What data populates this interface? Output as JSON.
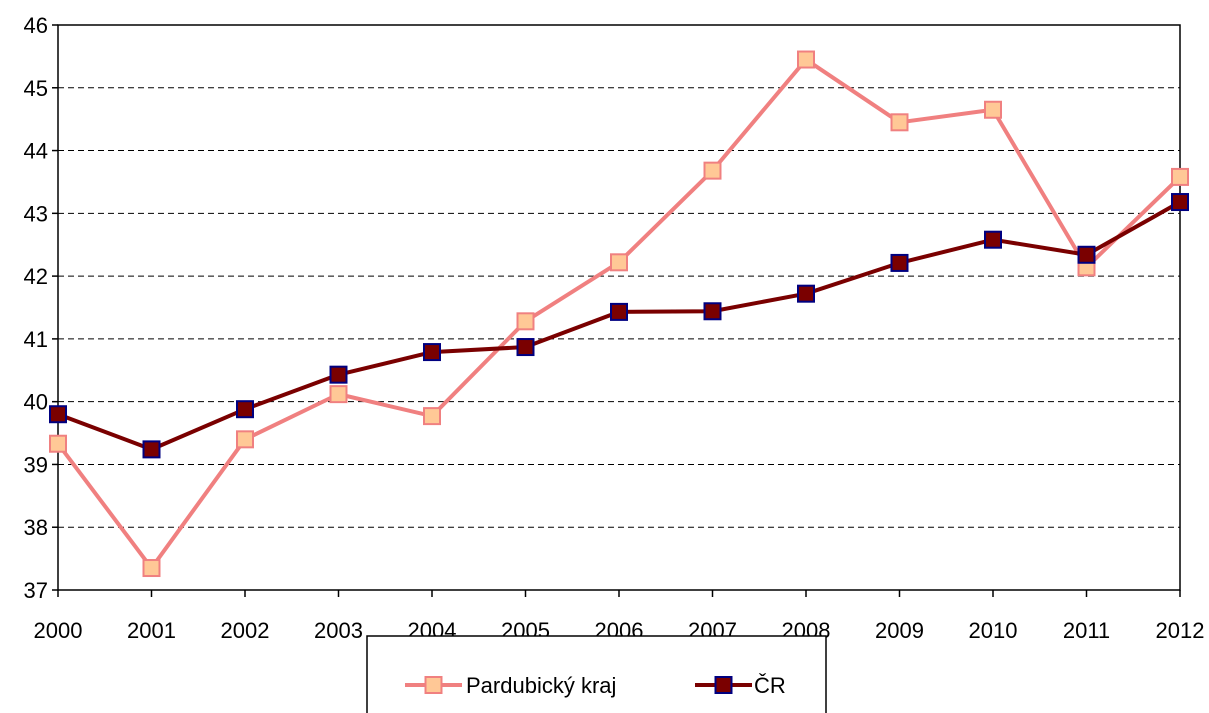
{
  "chart_data": {
    "type": "line",
    "title": "",
    "xlabel": "",
    "ylabel": "",
    "x": [
      "2000",
      "2001",
      "2002",
      "2003",
      "2004",
      "2005",
      "2006",
      "2007",
      "2008",
      "2009",
      "2010",
      "2011",
      "2012"
    ],
    "ylim": [
      37,
      46
    ],
    "yticks": [
      37,
      38,
      39,
      40,
      41,
      42,
      43,
      44,
      45,
      46
    ],
    "grid": "horizontal dashed",
    "legend_position": "bottom",
    "series": [
      {
        "name": "Pardubický kraj",
        "color": "#f08080",
        "marker_fill": "#ffc896",
        "marker_stroke": "#f08080",
        "values": [
          39.33,
          37.35,
          39.4,
          40.12,
          39.77,
          41.28,
          42.22,
          43.68,
          45.45,
          44.45,
          44.65,
          42.14,
          43.58
        ]
      },
      {
        "name": "ČR",
        "color": "#7a0000",
        "marker_fill": "#7a0000",
        "marker_stroke": "#000080",
        "values": [
          39.8,
          39.24,
          39.88,
          40.43,
          40.79,
          40.87,
          41.43,
          41.44,
          41.72,
          42.21,
          42.58,
          42.34,
          43.18
        ]
      }
    ]
  }
}
